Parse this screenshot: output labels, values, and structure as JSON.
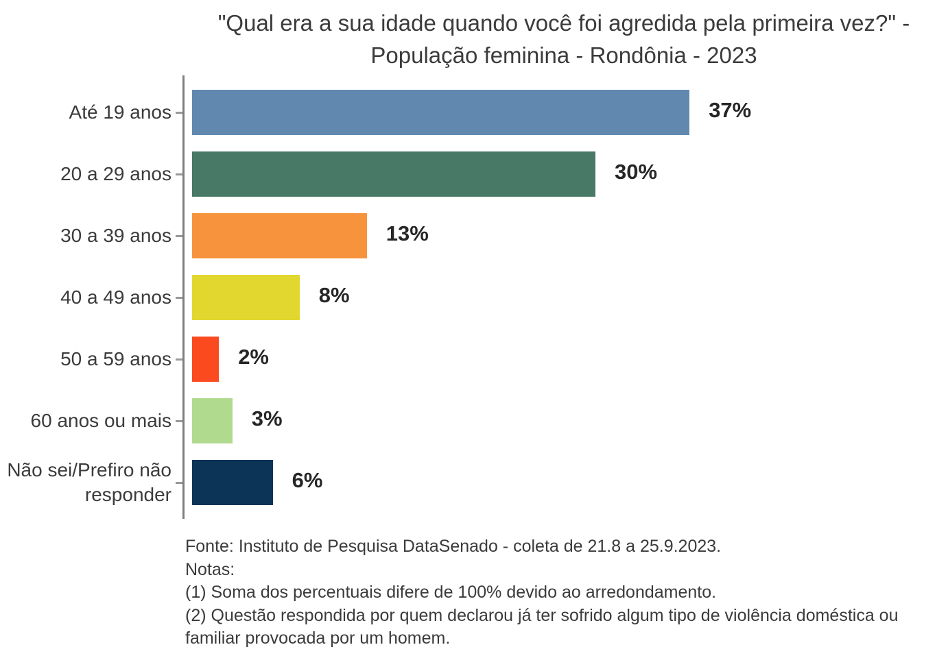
{
  "chart_data": {
    "type": "bar",
    "orientation": "horizontal",
    "title": "\"Qual era a sua idade quando você foi agredida pela primeira vez?\" - População feminina - Rondônia - 2023",
    "categories": [
      "Até 19 anos",
      "20 a 29 anos",
      "30 a 39 anos",
      "40 a 49 anos",
      "50 a 59 anos",
      "60 anos ou mais",
      "Não sei/Prefiro não responder"
    ],
    "values": [
      37,
      30,
      13,
      8,
      2,
      3,
      6
    ],
    "value_labels": [
      "37%",
      "30%",
      "13%",
      "8%",
      "2%",
      "3%",
      "6%"
    ],
    "bar_colors": [
      "#6189B0",
      "#487866",
      "#F8933D",
      "#E2D72F",
      "#FB4A1F",
      "#B0DA8D",
      "#0B3456"
    ],
    "unit": "%",
    "xlim": [
      0,
      55
    ],
    "grid": false,
    "legend": null,
    "value_label_position": "right-of-bar"
  },
  "footer": {
    "lines": [
      "Fonte: Instituto de Pesquisa DataSenado - coleta de 21.8 a 25.9.2023.",
      "Notas:",
      "(1) Soma dos percentuais difere de 100% devido ao arredondamento.",
      "(2) Questão respondida por quem declarou já ter sofrido algum tipo de violência doméstica ou familiar provocada por um homem."
    ]
  },
  "colors": {
    "title_text": "#3B3B3B",
    "category_text": "#3B3B3B",
    "value_text": "#262626",
    "axis_line": "#7F7F7F",
    "tick": "#999999",
    "background": "#FFFFFF"
  }
}
